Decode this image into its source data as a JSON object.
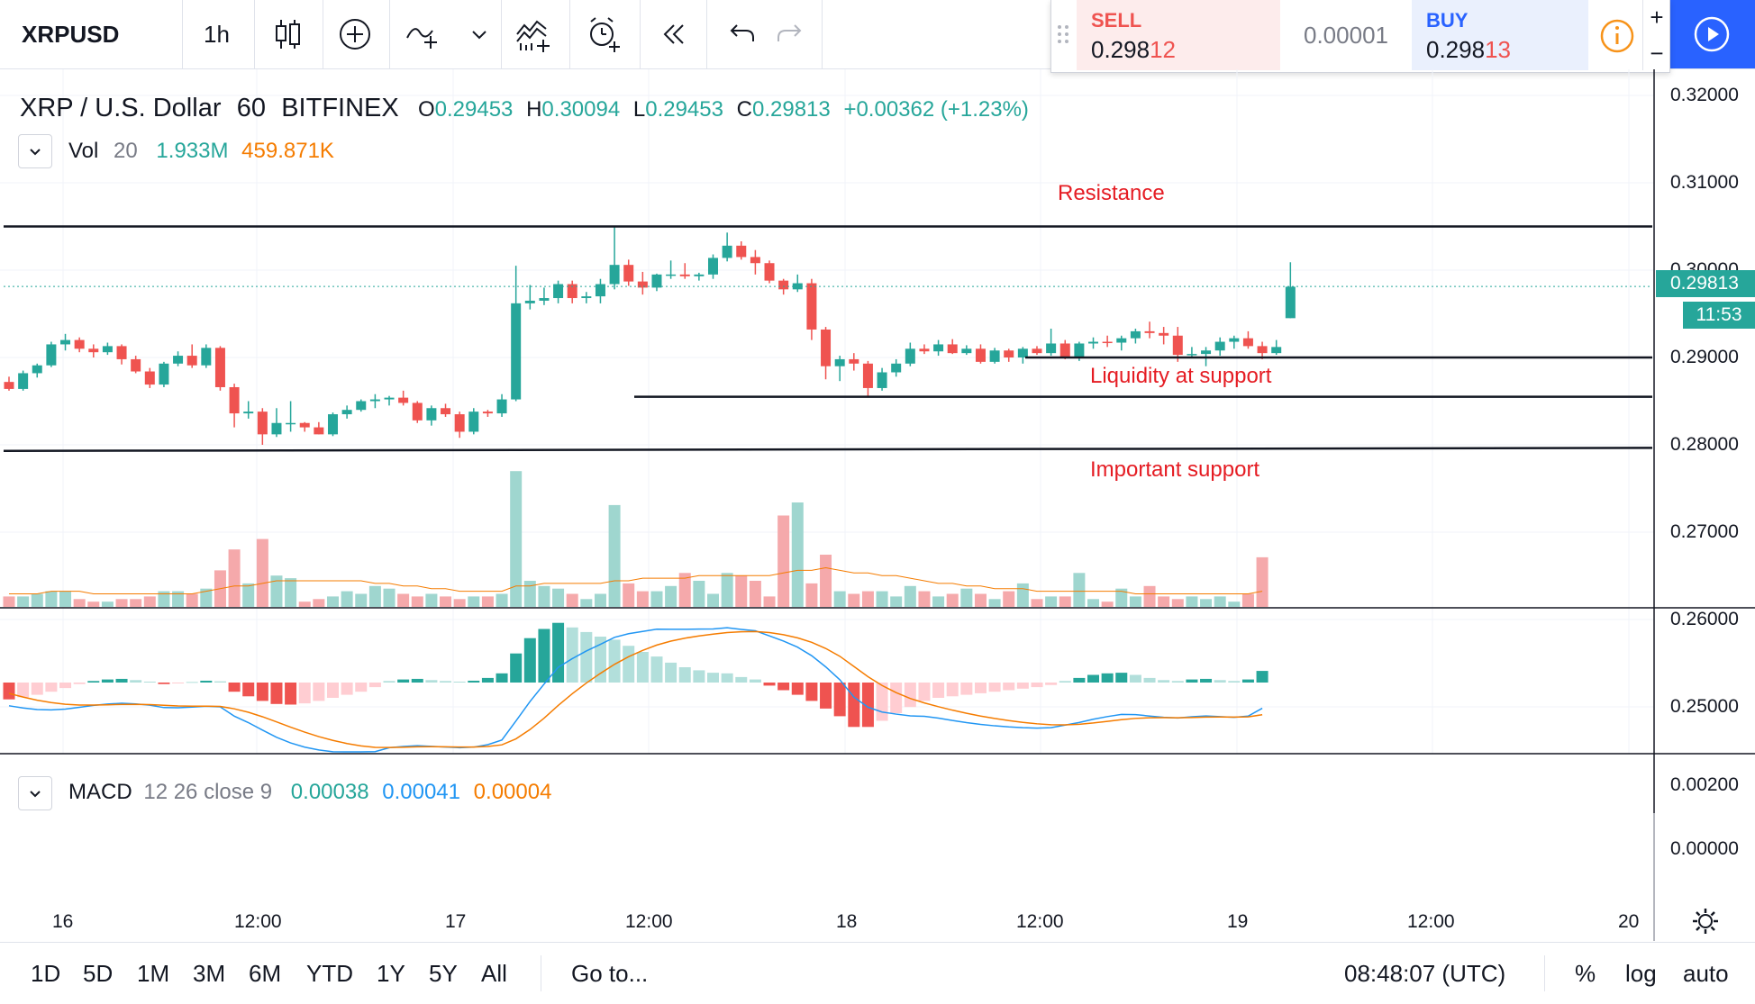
{
  "toolbar": {
    "symbol": "XRPUSD",
    "interval": "1h",
    "icons": [
      "bar-style-icon",
      "compare-add-icon",
      "indicators-icon",
      "chevron-down-icon",
      "templates-icon",
      "alert-icon",
      "replay-icon",
      "undo-icon",
      "redo-icon"
    ]
  },
  "trade": {
    "sell_label": "SELL",
    "sell_price_main": "0.298",
    "sell_price_tail": "12",
    "spread": "0.00001",
    "buy_label": "BUY",
    "buy_price_main": "0.298",
    "buy_price_tail": "13",
    "zoom_plus": "+",
    "zoom_minus": "−",
    "colors": {
      "sell": "#ef5350",
      "buy": "#2962ff",
      "info": "#f7931a",
      "publish": "#2962ff"
    }
  },
  "legend": {
    "title": "XRP / U.S. Dollar",
    "interval": "60",
    "exchange": "BITFINEX",
    "o_label": "O",
    "o": "0.29453",
    "h_label": "H",
    "h": "0.30094",
    "l_label": "L",
    "l": "0.29453",
    "c_label": "C",
    "c": "0.29813",
    "change": "+0.00362 (+1.23%)"
  },
  "volume": {
    "name": "Vol",
    "length": "20",
    "value": "1.933M",
    "ma": "459.871K"
  },
  "macd": {
    "name": "MACD",
    "params": "12 26 close 9",
    "hist": "0.00038",
    "macd": "0.00041",
    "signal": "0.00004"
  },
  "annotations": {
    "resistance": "Resistance",
    "liquidity": "Liquidity at support",
    "important": "Important support"
  },
  "price_axis": {
    "ticks": [
      "0.32000",
      "0.31000",
      "0.30000",
      "0.29000",
      "0.28000",
      "0.27000",
      "0.26000",
      "0.25000"
    ],
    "last_price": "0.29813",
    "countdown": "11:53"
  },
  "macd_axis": {
    "ticks": [
      "0.00200",
      "0.00000"
    ]
  },
  "time_axis": {
    "ticks": [
      "16",
      "12:00",
      "17",
      "12:00",
      "18",
      "12:00",
      "19",
      "12:00",
      "20"
    ]
  },
  "bottom": {
    "ranges": [
      "1D",
      "5D",
      "1M",
      "3M",
      "6M",
      "YTD",
      "1Y",
      "5Y",
      "All"
    ],
    "goto": "Go to...",
    "clock": "08:48:07 (UTC)",
    "percent": "%",
    "log": "log",
    "auto": "auto"
  },
  "colors": {
    "up": "#26a69a",
    "down": "#ef5350",
    "vol_up": "#9fd6cf",
    "vol_down": "#f5a9ab",
    "signal": "#f57c00",
    "macd": "#2196f3"
  },
  "chart_data": {
    "type": "candlestick",
    "symbol": "XRPUSD",
    "interval_minutes": 60,
    "ohlc": [
      {
        "x": "16 00:00",
        "o": 0.2872,
        "h": 0.2878,
        "l": 0.2862,
        "c": 0.2864
      },
      {
        "x": "16 01:00",
        "o": 0.2864,
        "h": 0.2885,
        "l": 0.2862,
        "c": 0.2882
      },
      {
        "x": "16 02:00",
        "o": 0.2882,
        "h": 0.2893,
        "l": 0.2877,
        "c": 0.2891
      },
      {
        "x": "16 03:00",
        "o": 0.2891,
        "h": 0.2918,
        "l": 0.2889,
        "c": 0.2915
      },
      {
        "x": "16 04:00",
        "o": 0.2915,
        "h": 0.2927,
        "l": 0.2908,
        "c": 0.292
      },
      {
        "x": "16 05:00",
        "o": 0.292,
        "h": 0.2923,
        "l": 0.2906,
        "c": 0.291
      },
      {
        "x": "16 06:00",
        "o": 0.291,
        "h": 0.2915,
        "l": 0.29,
        "c": 0.2906
      },
      {
        "x": "16 07:00",
        "o": 0.2906,
        "h": 0.2917,
        "l": 0.2903,
        "c": 0.2913
      },
      {
        "x": "16 08:00",
        "o": 0.2913,
        "h": 0.2915,
        "l": 0.2892,
        "c": 0.2898
      },
      {
        "x": "16 09:00",
        "o": 0.2898,
        "h": 0.2902,
        "l": 0.2882,
        "c": 0.2884
      },
      {
        "x": "16 10:00",
        "o": 0.2884,
        "h": 0.2888,
        "l": 0.2865,
        "c": 0.2869
      },
      {
        "x": "16 11:00",
        "o": 0.2869,
        "h": 0.2895,
        "l": 0.2866,
        "c": 0.2893
      },
      {
        "x": "16 12:00",
        "o": 0.2893,
        "h": 0.2907,
        "l": 0.289,
        "c": 0.2902
      },
      {
        "x": "16 13:00",
        "o": 0.2902,
        "h": 0.2915,
        "l": 0.2888,
        "c": 0.2891
      },
      {
        "x": "16 14:00",
        "o": 0.2891,
        "h": 0.2915,
        "l": 0.2888,
        "c": 0.2911
      },
      {
        "x": "16 15:00",
        "o": 0.2911,
        "h": 0.2913,
        "l": 0.2862,
        "c": 0.2866
      },
      {
        "x": "16 16:00",
        "o": 0.2866,
        "h": 0.287,
        "l": 0.282,
        "c": 0.2836
      },
      {
        "x": "16 17:00",
        "o": 0.2836,
        "h": 0.285,
        "l": 0.283,
        "c": 0.2838
      },
      {
        "x": "16 18:00",
        "o": 0.2838,
        "h": 0.2842,
        "l": 0.28,
        "c": 0.2812
      },
      {
        "x": "16 19:00",
        "o": 0.2812,
        "h": 0.2842,
        "l": 0.2809,
        "c": 0.2825
      },
      {
        "x": "16 20:00",
        "o": 0.2825,
        "h": 0.285,
        "l": 0.2815,
        "c": 0.2825
      },
      {
        "x": "16 21:00",
        "o": 0.2825,
        "h": 0.2826,
        "l": 0.2815,
        "c": 0.282
      },
      {
        "x": "16 22:00",
        "o": 0.282,
        "h": 0.2826,
        "l": 0.2812,
        "c": 0.2812
      },
      {
        "x": "16 23:00",
        "o": 0.2812,
        "h": 0.2837,
        "l": 0.281,
        "c": 0.2835
      },
      {
        "x": "17 00:00",
        "o": 0.2835,
        "h": 0.2845,
        "l": 0.283,
        "c": 0.284
      },
      {
        "x": "17 01:00",
        "o": 0.284,
        "h": 0.2852,
        "l": 0.2838,
        "c": 0.285
      },
      {
        "x": "17 02:00",
        "o": 0.285,
        "h": 0.2858,
        "l": 0.2842,
        "c": 0.2852
      },
      {
        "x": "17 03:00",
        "o": 0.2852,
        "h": 0.2856,
        "l": 0.2845,
        "c": 0.2854
      },
      {
        "x": "17 04:00",
        "o": 0.2854,
        "h": 0.2862,
        "l": 0.2845,
        "c": 0.2848
      },
      {
        "x": "17 05:00",
        "o": 0.2848,
        "h": 0.285,
        "l": 0.2825,
        "c": 0.2828
      },
      {
        "x": "17 06:00",
        "o": 0.2828,
        "h": 0.2845,
        "l": 0.2822,
        "c": 0.2842
      },
      {
        "x": "17 07:00",
        "o": 0.2842,
        "h": 0.2847,
        "l": 0.2832,
        "c": 0.2835
      },
      {
        "x": "17 08:00",
        "o": 0.2835,
        "h": 0.2838,
        "l": 0.2808,
        "c": 0.2815
      },
      {
        "x": "17 09:00",
        "o": 0.2815,
        "h": 0.2842,
        "l": 0.2812,
        "c": 0.2838
      },
      {
        "x": "17 10:00",
        "o": 0.2838,
        "h": 0.284,
        "l": 0.2832,
        "c": 0.2836
      },
      {
        "x": "17 11:00",
        "o": 0.2836,
        "h": 0.2858,
        "l": 0.2832,
        "c": 0.2852
      },
      {
        "x": "17 12:00",
        "o": 0.2852,
        "h": 0.3005,
        "l": 0.285,
        "c": 0.2962
      },
      {
        "x": "17 13:00",
        "o": 0.2962,
        "h": 0.2983,
        "l": 0.2955,
        "c": 0.2965
      },
      {
        "x": "17 14:00",
        "o": 0.2965,
        "h": 0.298,
        "l": 0.296,
        "c": 0.2968
      },
      {
        "x": "17 15:00",
        "o": 0.2968,
        "h": 0.2988,
        "l": 0.2962,
        "c": 0.2984
      },
      {
        "x": "17 16:00",
        "o": 0.2984,
        "h": 0.2988,
        "l": 0.2962,
        "c": 0.2968
      },
      {
        "x": "17 17:00",
        "o": 0.2968,
        "h": 0.2975,
        "l": 0.2962,
        "c": 0.297
      },
      {
        "x": "17 18:00",
        "o": 0.297,
        "h": 0.299,
        "l": 0.2962,
        "c": 0.2984
      },
      {
        "x": "17 19:00",
        "o": 0.2984,
        "h": 0.3049,
        "l": 0.2978,
        "c": 0.3006
      },
      {
        "x": "17 20:00",
        "o": 0.3006,
        "h": 0.3012,
        "l": 0.2982,
        "c": 0.2987
      },
      {
        "x": "17 21:00",
        "o": 0.2987,
        "h": 0.2998,
        "l": 0.2972,
        "c": 0.298
      },
      {
        "x": "17 22:00",
        "o": 0.298,
        "h": 0.2996,
        "l": 0.2976,
        "c": 0.2995
      },
      {
        "x": "17 23:00",
        "o": 0.2995,
        "h": 0.3011,
        "l": 0.299,
        "c": 0.2995
      },
      {
        "x": "18 00:00",
        "o": 0.2995,
        "h": 0.3008,
        "l": 0.299,
        "c": 0.2993
      },
      {
        "x": "18 01:00",
        "o": 0.2993,
        "h": 0.2997,
        "l": 0.2988,
        "c": 0.2995
      },
      {
        "x": "18 02:00",
        "o": 0.2995,
        "h": 0.3018,
        "l": 0.299,
        "c": 0.3014
      },
      {
        "x": "18 03:00",
        "o": 0.3014,
        "h": 0.3043,
        "l": 0.301,
        "c": 0.3028
      },
      {
        "x": "18 04:00",
        "o": 0.3028,
        "h": 0.3033,
        "l": 0.3012,
        "c": 0.3015
      },
      {
        "x": "18 05:00",
        "o": 0.3015,
        "h": 0.3023,
        "l": 0.2995,
        "c": 0.3008
      },
      {
        "x": "18 06:00",
        "o": 0.3008,
        "h": 0.3011,
        "l": 0.2985,
        "c": 0.2988
      },
      {
        "x": "18 07:00",
        "o": 0.2988,
        "h": 0.299,
        "l": 0.2972,
        "c": 0.2978
      },
      {
        "x": "18 08:00",
        "o": 0.2978,
        "h": 0.2995,
        "l": 0.2975,
        "c": 0.2985
      },
      {
        "x": "18 09:00",
        "o": 0.2985,
        "h": 0.299,
        "l": 0.292,
        "c": 0.2932
      },
      {
        "x": "18 10:00",
        "o": 0.2932,
        "h": 0.2935,
        "l": 0.2875,
        "c": 0.289
      },
      {
        "x": "18 11:00",
        "o": 0.289,
        "h": 0.2902,
        "l": 0.2873,
        "c": 0.2898
      },
      {
        "x": "18 12:00",
        "o": 0.2898,
        "h": 0.2905,
        "l": 0.2885,
        "c": 0.2893
      },
      {
        "x": "18 13:00",
        "o": 0.2893,
        "h": 0.2896,
        "l": 0.2855,
        "c": 0.2865
      },
      {
        "x": "18 14:00",
        "o": 0.2865,
        "h": 0.2888,
        "l": 0.2862,
        "c": 0.2883
      },
      {
        "x": "18 15:00",
        "o": 0.2883,
        "h": 0.2898,
        "l": 0.2878,
        "c": 0.2893
      },
      {
        "x": "18 16:00",
        "o": 0.2893,
        "h": 0.2917,
        "l": 0.289,
        "c": 0.291
      },
      {
        "x": "18 17:00",
        "o": 0.291,
        "h": 0.2915,
        "l": 0.2904,
        "c": 0.2907
      },
      {
        "x": "18 18:00",
        "o": 0.2907,
        "h": 0.292,
        "l": 0.2902,
        "c": 0.2915
      },
      {
        "x": "18 19:00",
        "o": 0.2915,
        "h": 0.2921,
        "l": 0.2904,
        "c": 0.2905
      },
      {
        "x": "18 20:00",
        "o": 0.2905,
        "h": 0.2914,
        "l": 0.2903,
        "c": 0.291
      },
      {
        "x": "18 21:00",
        "o": 0.291,
        "h": 0.2915,
        "l": 0.2893,
        "c": 0.2895
      },
      {
        "x": "18 22:00",
        "o": 0.2895,
        "h": 0.2911,
        "l": 0.2893,
        "c": 0.2908
      },
      {
        "x": "18 23:00",
        "o": 0.2908,
        "h": 0.291,
        "l": 0.2895,
        "c": 0.29
      },
      {
        "x": "19 00:00",
        "o": 0.29,
        "h": 0.2912,
        "l": 0.2893,
        "c": 0.291
      },
      {
        "x": "19 01:00",
        "o": 0.291,
        "h": 0.2913,
        "l": 0.2903,
        "c": 0.2905
      },
      {
        "x": "19 02:00",
        "o": 0.2905,
        "h": 0.2933,
        "l": 0.2902,
        "c": 0.2916
      },
      {
        "x": "19 03:00",
        "o": 0.2916,
        "h": 0.292,
        "l": 0.2898,
        "c": 0.29
      },
      {
        "x": "19 04:00",
        "o": 0.29,
        "h": 0.2918,
        "l": 0.2896,
        "c": 0.2916
      },
      {
        "x": "19 05:00",
        "o": 0.2916,
        "h": 0.2923,
        "l": 0.291,
        "c": 0.2918
      },
      {
        "x": "19 06:00",
        "o": 0.2918,
        "h": 0.2925,
        "l": 0.2912,
        "c": 0.2917
      },
      {
        "x": "19 07:00",
        "o": 0.2917,
        "h": 0.2925,
        "l": 0.2908,
        "c": 0.2922
      },
      {
        "x": "19 08:00",
        "o": 0.2922,
        "h": 0.2933,
        "l": 0.2916,
        "c": 0.293
      },
      {
        "x": "19 09:00",
        "o": 0.293,
        "h": 0.2941,
        "l": 0.2922,
        "c": 0.2928
      },
      {
        "x": "19 10:00",
        "o": 0.2928,
        "h": 0.2935,
        "l": 0.2915,
        "c": 0.2925
      },
      {
        "x": "19 11:00",
        "o": 0.2925,
        "h": 0.2935,
        "l": 0.2895,
        "c": 0.2903
      },
      {
        "x": "19 12:00",
        "o": 0.2903,
        "h": 0.2912,
        "l": 0.29,
        "c": 0.2904
      },
      {
        "x": "19 13:00",
        "o": 0.2904,
        "h": 0.2912,
        "l": 0.289,
        "c": 0.2908
      },
      {
        "x": "19 14:00",
        "o": 0.2908,
        "h": 0.2923,
        "l": 0.2902,
        "c": 0.2918
      },
      {
        "x": "19 15:00",
        "o": 0.2918,
        "h": 0.2925,
        "l": 0.291,
        "c": 0.2922
      },
      {
        "x": "19 16:00",
        "o": 0.2922,
        "h": 0.293,
        "l": 0.291,
        "c": 0.2913
      },
      {
        "x": "19 17:00",
        "o": 0.2913,
        "h": 0.2918,
        "l": 0.2898,
        "c": 0.2905
      },
      {
        "x": "19 18:00",
        "o": 0.2905,
        "h": 0.292,
        "l": 0.2903,
        "c": 0.2912
      },
      {
        "x": "19 19:00",
        "o": 0.2945,
        "h": 0.3009,
        "l": 0.2945,
        "c": 0.2981
      }
    ],
    "volume": [
      4,
      4,
      5,
      6,
      6,
      3,
      2,
      2,
      3,
      3,
      4,
      6,
      6,
      5,
      7,
      14,
      22,
      9,
      26,
      12,
      11,
      2,
      3,
      4,
      6,
      5,
      8,
      7,
      5,
      4,
      5,
      4,
      3,
      4,
      4,
      5,
      52,
      10,
      8,
      7,
      5,
      3,
      5,
      39,
      9,
      6,
      6,
      8,
      13,
      10,
      5,
      13,
      12,
      10,
      4,
      35,
      40,
      9,
      20,
      6,
      5,
      6,
      6,
      4,
      8,
      6,
      4,
      5,
      7,
      5,
      3,
      6,
      9,
      3,
      4,
      4,
      13,
      3,
      2,
      7,
      4,
      8,
      4,
      3,
      4,
      3,
      4,
      2,
      5,
      19
    ],
    "volume_ma": [
      5,
      5,
      5,
      6,
      6,
      6,
      5,
      5,
      5,
      5,
      5,
      5,
      5,
      5,
      6,
      7,
      8,
      8,
      9,
      10,
      10,
      10,
      10,
      10,
      10,
      10,
      9,
      9,
      8,
      8,
      7,
      7,
      6,
      6,
      6,
      6,
      8,
      8,
      9,
      9,
      9,
      9,
      9,
      10,
      10,
      11,
      11,
      11,
      11,
      12,
      12,
      12,
      12,
      12,
      12,
      13,
      14,
      14,
      15,
      14,
      13,
      13,
      12,
      12,
      11,
      10,
      9,
      9,
      8,
      8,
      7,
      7,
      7,
      6,
      6,
      6,
      6,
      6,
      6,
      6,
      5,
      5,
      5,
      5,
      5,
      5,
      5,
      5,
      5,
      6
    ],
    "macd_hist": [
      -0.00055,
      -0.00048,
      -0.0004,
      -0.0003,
      -0.00018,
      -5e-05,
      5e-05,
      0.0001,
      0.00012,
      8e-05,
      3e-05,
      -5e-05,
      -3e-05,
      2e-05,
      6e-05,
      4e-05,
      -0.0003,
      -0.00045,
      -0.0006,
      -0.0007,
      -0.00072,
      -0.00068,
      -0.0006,
      -0.0005,
      -0.0004,
      -0.0003,
      -0.00015,
      5e-05,
      0.0001,
      0.00012,
      8e-05,
      5e-05,
      3e-05,
      6e-05,
      0.00015,
      0.0003,
      0.00095,
      0.00145,
      0.00175,
      0.00195,
      0.0018,
      0.00165,
      0.0015,
      0.0014,
      0.0012,
      0.001,
      0.00085,
      0.00065,
      0.0005,
      0.0004,
      0.00032,
      0.0003,
      0.00018,
      0.0001,
      -0.0001,
      -0.00025,
      -0.0004,
      -0.0006,
      -0.00085,
      -0.0011,
      -0.00145,
      -0.00145,
      -0.00125,
      -0.001,
      -0.0008,
      -0.0006,
      -0.0005,
      -0.00045,
      -0.0004,
      -0.00035,
      -0.0003,
      -0.00025,
      -0.0002,
      -0.00015,
      -8e-05,
      5e-05,
      0.00015,
      0.00025,
      0.0003,
      0.00032,
      0.00025,
      0.00015,
      8e-05,
      5e-05,
      0.0001,
      0.00012,
      8e-05,
      5e-05,
      0.0001,
      0.00038
    ],
    "axes": {
      "price_range": [
        0.242,
        0.323
      ],
      "macd_range": [
        -0.0015,
        0.0029
      ],
      "log_scale": false,
      "grid": true
    },
    "trendlines": [
      {
        "label": "Resistance",
        "y": 0.305
      },
      {
        "label": "Liquidity at support",
        "y": 0.29
      },
      {
        "label": "",
        "y": 0.2855
      },
      {
        "label": "Important support",
        "y": 0.2793
      }
    ]
  }
}
